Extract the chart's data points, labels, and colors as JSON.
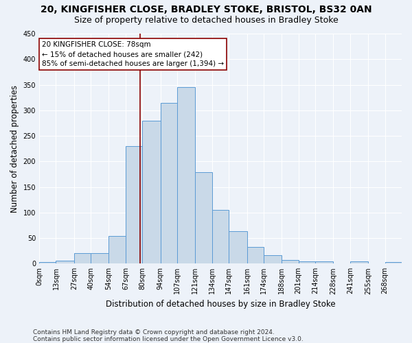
{
  "title_line1": "20, KINGFISHER CLOSE, BRADLEY STOKE, BRISTOL, BS32 0AN",
  "title_line2": "Size of property relative to detached houses in Bradley Stoke",
  "xlabel": "Distribution of detached houses by size in Bradley Stoke",
  "ylabel": "Number of detached properties",
  "bar_color": "#c9d9e8",
  "bar_edge_color": "#5b9bd5",
  "background_color": "#edf2f9",
  "grid_color": "#ffffff",
  "bin_labels": [
    "0sqm",
    "13sqm",
    "27sqm",
    "40sqm",
    "54sqm",
    "67sqm",
    "80sqm",
    "94sqm",
    "107sqm",
    "121sqm",
    "134sqm",
    "147sqm",
    "161sqm",
    "174sqm",
    "188sqm",
    "201sqm",
    "214sqm",
    "228sqm",
    "241sqm",
    "255sqm",
    "268sqm"
  ],
  "bin_edges": [
    0,
    13,
    27,
    40,
    54,
    67,
    80,
    94,
    107,
    121,
    134,
    147,
    161,
    174,
    188,
    201,
    214,
    228,
    241,
    255,
    268,
    281
  ],
  "bar_heights": [
    3,
    6,
    21,
    21,
    54,
    230,
    280,
    315,
    345,
    179,
    105,
    63,
    32,
    17,
    7,
    4,
    4,
    0,
    4,
    0,
    3
  ],
  "vline_x": 78,
  "vline_color": "#8b0000",
  "annotation_text": "20 KINGFISHER CLOSE: 78sqm\n← 15% of detached houses are smaller (242)\n85% of semi-detached houses are larger (1,394) →",
  "annotation_box_color": "#ffffff",
  "annotation_border_color": "#8b0000",
  "footer_line1": "Contains HM Land Registry data © Crown copyright and database right 2024.",
  "footer_line2": "Contains public sector information licensed under the Open Government Licence v3.0.",
  "ylim": [
    0,
    450
  ],
  "yticks": [
    0,
    50,
    100,
    150,
    200,
    250,
    300,
    350,
    400,
    450
  ],
  "title_fontsize": 10,
  "subtitle_fontsize": 9,
  "axis_label_fontsize": 8.5,
  "tick_fontsize": 7,
  "annotation_fontsize": 7.5,
  "footer_fontsize": 6.5
}
